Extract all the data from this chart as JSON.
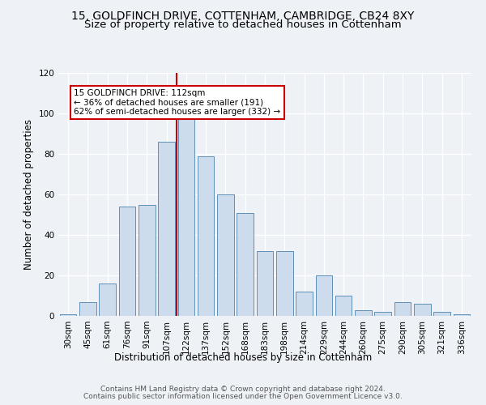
{
  "title1": "15, GOLDFINCH DRIVE, COTTENHAM, CAMBRIDGE, CB24 8XY",
  "title2": "Size of property relative to detached houses in Cottenham",
  "xlabel": "Distribution of detached houses by size in Cottenham",
  "ylabel": "Number of detached properties",
  "bar_labels": [
    "30sqm",
    "45sqm",
    "61sqm",
    "76sqm",
    "91sqm",
    "107sqm",
    "122sqm",
    "137sqm",
    "152sqm",
    "168sqm",
    "183sqm",
    "198sqm",
    "214sqm",
    "229sqm",
    "244sqm",
    "260sqm",
    "275sqm",
    "290sqm",
    "305sqm",
    "321sqm",
    "336sqm"
  ],
  "bar_values": [
    1,
    7,
    16,
    54,
    55,
    86,
    98,
    79,
    60,
    51,
    32,
    32,
    12,
    20,
    10,
    3,
    2,
    7,
    6,
    2,
    1
  ],
  "bar_color": "#ccdcec",
  "bar_edge_color": "#6090b8",
  "annotation_box_text": "15 GOLDFINCH DRIVE: 112sqm\n← 36% of detached houses are smaller (191)\n62% of semi-detached houses are larger (332) →",
  "annotation_box_color": "#ffffff",
  "annotation_box_edge_color": "#cc0000",
  "vline_x_index": 5.5,
  "vline_color": "#cc0000",
  "ylim": [
    0,
    120
  ],
  "yticks": [
    0,
    20,
    40,
    60,
    80,
    100,
    120
  ],
  "footer1": "Contains HM Land Registry data © Crown copyright and database right 2024.",
  "footer2": "Contains public sector information licensed under the Open Government Licence v3.0.",
  "background_color": "#eef2f7",
  "plot_background": "#eef2f7",
  "title1_fontsize": 10,
  "title2_fontsize": 9.5,
  "tick_fontsize": 7.5,
  "ylabel_fontsize": 8.5,
  "xlabel_fontsize": 8.5,
  "footer_fontsize": 6.5,
  "ann_fontsize": 7.5
}
